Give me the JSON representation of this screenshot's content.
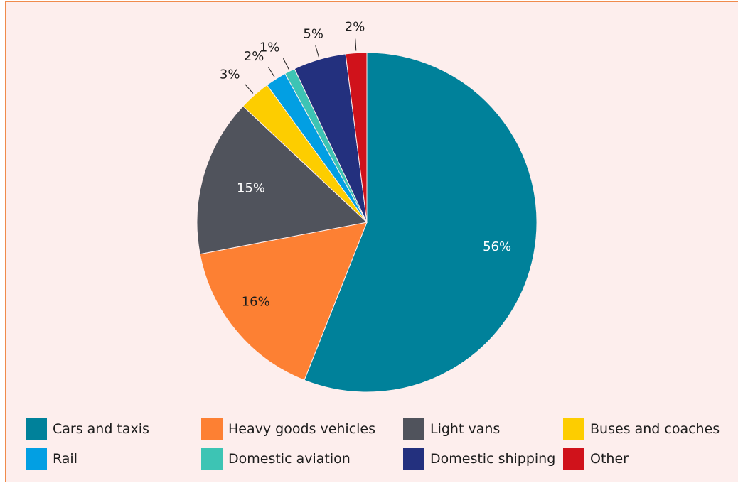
{
  "chart_data": {
    "type": "pie",
    "slices": [
      {
        "label": "Cars and taxis",
        "value": 56,
        "display": "56%",
        "color": "#00819a"
      },
      {
        "label": "Heavy goods vehicles",
        "value": 16,
        "display": "16%",
        "color": "#fd8033"
      },
      {
        "label": "Light vans",
        "value": 15,
        "display": "15%",
        "color": "#50535c"
      },
      {
        "label": "Buses and coaches",
        "value": 3,
        "display": "3%",
        "color": "#fdcd00"
      },
      {
        "label": "Rail",
        "value": 2,
        "display": "2%",
        "color": "#029fe3"
      },
      {
        "label": "Domestic aviation",
        "value": 1,
        "display": "1%",
        "color": "#3dc4b4"
      },
      {
        "label": "Domestic shipping",
        "value": 5,
        "display": "5%",
        "color": "#23307e"
      },
      {
        "label": "Other",
        "value": 2,
        "display": "2%",
        "color": "#d0121b"
      }
    ],
    "legend_position": "bottom",
    "start_angle": "12 o'clock",
    "direction": "clockwise"
  },
  "colors": {
    "background": "#fdeeed",
    "border": "#f08a4b"
  }
}
